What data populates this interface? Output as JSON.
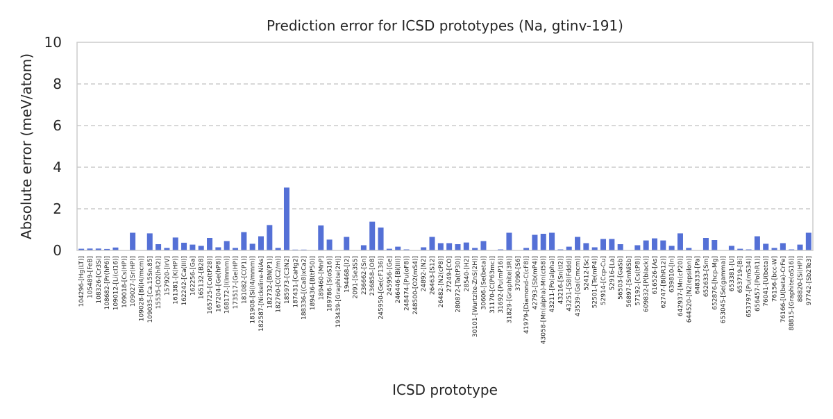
{
  "chart_data": {
    "type": "bar",
    "title": "Prediction error for ICSD prototypes (Na, gtinv-191)",
    "xlabel": "ICSD prototype",
    "ylabel": "Absolute error (meV/atom)",
    "ylim": [
      0,
      10
    ],
    "yticks": [
      0,
      2,
      4,
      6,
      8,
      10
    ],
    "grid": "horizontal dashed",
    "bar_color": "#5470d6",
    "categories": [
      "104296-[Hg(LT)]",
      "105489-[FeB]",
      "108326-[Cr3Si]",
      "108682-[Pr(hP6)]",
      "109012-[Li(cI16)]",
      "109018-[Cs(HP)]",
      "109027-[Sr(HP)]",
      "109028-[Bi(I4/mcm)]",
      "109035-[Ca.15Sn.85]",
      "15535-[O2(hR2)]",
      "157920-[IrV]",
      "161381-[K(HP)]",
      "162242-[Ca(III)]",
      "162256-[Ga]",
      "165132-[B28]",
      "165725-[Co(tP28)]",
      "167204-[Ge(hP8)]",
      "168172-[I(Immm)]",
      "173517-[Ge(HP)]",
      "181082-[C(P1)]",
      "181908-[Si(I4/mmm)]",
      "182587-[Nickeline-NiAs]",
      "182732-[BN(P1)]",
      "182760-[C(C2/m)]",
      "185973-[C3N2]",
      "187431-[CaHg2]",
      "188336-[(Ca8)xCa2]",
      "189436-[B(tP50)]",
      "189460-[MnP]",
      "189786-[S(oS16)]",
      "193439-[Graphite(2H)]",
      "194468-[I2]",
      "2091-[Se3S5]",
      "236662-[Sn]",
      "236858-[O8]",
      "245950-[Ge(cF136)]",
      "245956-[Ge]",
      "246446-[Bi(III)]",
      "248474-[Pu(oF8)]",
      "248500-[O2(mS4)]",
      "24892-[N2]",
      "26463-[S12]",
      "26482-[N2(cP8)]",
      "27249-[CO]",
      "280872-[Ta(tP30)]",
      "28540-[H2]",
      "30101-[Wurtzite-ZnS(2H)]",
      "30606-[Se(beta)]",
      "31170-[C(P63mc)]",
      "31692-[Pu(mP16)]",
      "31829-[Graphite(3R)]",
      "37090-[S6]",
      "41979-[Diamond-C(cF8)]",
      "42793-[Sb(mP4)]",
      "43058-[Mn(alpha)-Mn(cI58)]",
      "43211-[Po(alpha)]",
      "43216-[Sn(tI2)]",
      "43251-[S8(Fddd)]",
      "43539-[Ga(Cmcm)]",
      "52412-[Sc]",
      "52501-[Te(mP4)]",
      "52914-[Ccp-Cu]",
      "52916-[La]",
      "56503-[GaSb]",
      "56897-[SmNiSb]",
      "57192-[Cs(tP8)]",
      "609832-[P(black)]",
      "616526-[As]",
      "62747-[B(hR12)]",
      "639810-[In]",
      "642937-[Mn(cP20)]",
      "644520-[N2(epsilon)]",
      "648333-[Pa]",
      "652633-[Sm]",
      "652876-[hcp-Mg]",
      "653045-[Se(gamma)]",
      "653381-[U]",
      "653719-[Bi]",
      "653797-[Pu(mS34)]",
      "656457-[Po(hR1)]",
      "76041-[U(beta)]",
      "76156-[bcc-W]",
      "76166-[U(beta)-CrFe]",
      "88815-[Graphite(oS16)]",
      "88820-[Si(HP)]",
      "97742-[Sb2Te3]"
    ],
    "values": [
      0.08,
      0.09,
      0.09,
      0.07,
      0.14,
      0.0,
      0.85,
      0.0,
      0.82,
      0.3,
      0.12,
      0.62,
      0.37,
      0.28,
      0.22,
      0.6,
      0.15,
      0.45,
      0.12,
      0.88,
      0.32,
      0.68,
      1.22,
      0.12,
      3.02,
      0.04,
      0.04,
      0.0,
      1.2,
      0.52,
      0.0,
      0.65,
      0.0,
      0.25,
      1.38,
      1.1,
      0.08,
      0.18,
      0.05,
      0.0,
      0.15,
      0.65,
      0.35,
      0.35,
      0.3,
      0.38,
      0.12,
      0.45,
      0.0,
      0.05,
      0.85,
      0.0,
      0.12,
      0.75,
      0.8,
      0.85,
      0.05,
      0.18,
      0.65,
      0.35,
      0.15,
      0.55,
      0.55,
      0.3,
      0.0,
      0.25,
      0.48,
      0.58,
      0.48,
      0.22,
      0.82,
      0.12,
      0.0,
      0.6,
      0.5,
      0.0,
      0.22,
      0.08,
      0.05,
      0.68,
      0.32,
      0.12,
      0.35,
      0.05,
      0.28,
      0.85
    ]
  }
}
